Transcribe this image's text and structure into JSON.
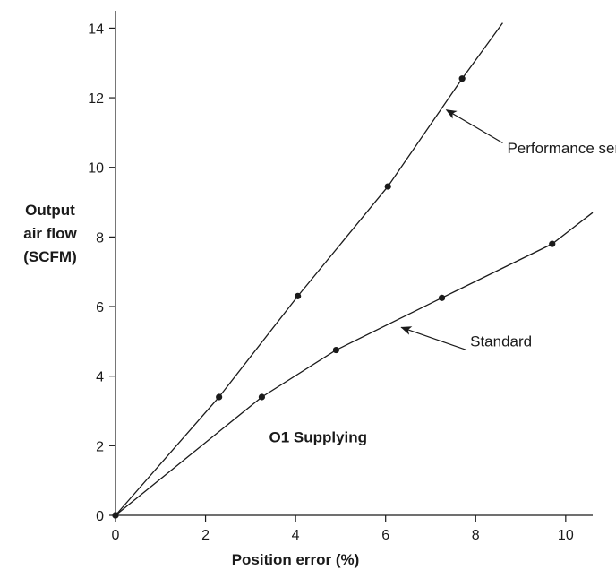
{
  "chart_data": {
    "type": "line",
    "xlabel": "Position error (%)",
    "ylabel": [
      "Output",
      "air flow",
      "(SCFM)"
    ],
    "xlim": [
      0,
      10.6
    ],
    "ylim": [
      0,
      14.5
    ],
    "xticks": [
      0,
      2,
      4,
      6,
      8,
      10
    ],
    "yticks": [
      0,
      2,
      4,
      6,
      8,
      10,
      12,
      14
    ],
    "grid": false,
    "series": [
      {
        "name": "Performance series",
        "x": [
          0,
          2.3,
          4.05,
          6.05,
          7.7
        ],
        "y": [
          0,
          3.4,
          6.3,
          9.45,
          12.55
        ],
        "line_end": [
          8.6,
          14.15
        ]
      },
      {
        "name": "Standard",
        "x": [
          0,
          3.25,
          4.9,
          7.25,
          9.7
        ],
        "y": [
          0,
          3.4,
          4.75,
          6.25,
          7.8
        ],
        "line_end": [
          10.6,
          8.7
        ]
      }
    ],
    "annotations": [
      {
        "id": "performance",
        "text": "Performance series",
        "text_at": [
          8.7,
          10.4
        ],
        "arrow_to": [
          7.35,
          11.65
        ]
      },
      {
        "id": "standard",
        "text": "Standard",
        "text_at": [
          9.25,
          4.85
        ],
        "arrow_to": [
          6.35,
          5.4
        ]
      },
      {
        "id": "supplying",
        "text": "O1 Supplying",
        "text_at": [
          4.5,
          2.1
        ]
      }
    ],
    "colors": {
      "line": "#1a1a1a",
      "marker": "#1a1a1a",
      "axis": "#1a1a1a"
    }
  }
}
